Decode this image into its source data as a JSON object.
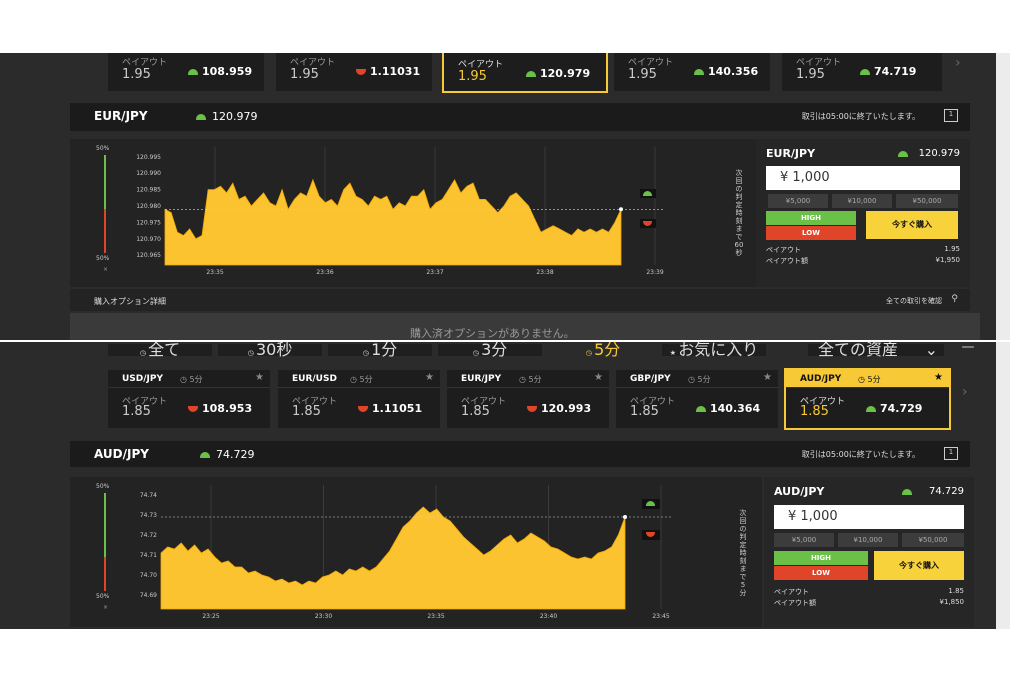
{
  "panel1": {
    "cards": [
      {
        "payout_label": "ペイアウト",
        "payout": "1.95",
        "rate": "108.959",
        "dir": "up"
      },
      {
        "payout_label": "ペイアウト",
        "payout": "1.95",
        "rate": "1.11031",
        "dir": "down"
      },
      {
        "payout_label": "ペイアウト",
        "payout": "1.95",
        "rate": "120.979",
        "dir": "up",
        "active": true
      },
      {
        "payout_label": "ペイアウト",
        "payout": "1.95",
        "rate": "140.356",
        "dir": "up"
      },
      {
        "payout_label": "ペイアウト",
        "payout": "1.95",
        "rate": "74.719",
        "dir": "up"
      }
    ],
    "header": {
      "pair": "EUR/JPY",
      "rate": "120.979",
      "notice": "取引は05:00に終了いたします。",
      "icon": "1"
    },
    "pct_top": "50%",
    "pct_bottom": "50%",
    "pct_x": "×",
    "countdown": [
      "次",
      "回",
      "の",
      "判",
      "定",
      "時",
      "刻",
      "ま",
      "で",
      "60",
      "秒"
    ],
    "side": {
      "pair": "EUR/JPY",
      "rate": "120.979",
      "amount": "¥ 1,000",
      "presets": [
        "¥5,000",
        "¥10,000",
        "¥50,000"
      ],
      "high": "HIGH",
      "low": "LOW",
      "buy": "今すぐ購入",
      "payout_label": "ペイアウト",
      "payout_value": "1.95",
      "payout_amount_label": "ペイアウト額",
      "payout_amount_value": "¥1,950"
    },
    "footer": {
      "left": "購入オプション詳細",
      "right": "全ての取引を確認"
    },
    "empty_message": "購入済オプションがありません。"
  },
  "panel2": {
    "tabs": [
      "全て",
      "30秒",
      "1分",
      "3分",
      "5分",
      "お気に入り"
    ],
    "asset_select": "全ての資産",
    "cards": [
      {
        "pair": "USD/JPY",
        "time": "5分",
        "payout_label": "ペイアウト",
        "payout": "1.85",
        "rate": "108.953",
        "dir": "down"
      },
      {
        "pair": "EUR/USD",
        "time": "5分",
        "payout_label": "ペイアウト",
        "payout": "1.85",
        "rate": "1.11051",
        "dir": "down"
      },
      {
        "pair": "EUR/JPY",
        "time": "5分",
        "payout_label": "ペイアウト",
        "payout": "1.85",
        "rate": "120.993",
        "dir": "down"
      },
      {
        "pair": "GBP/JPY",
        "time": "5分",
        "payout_label": "ペイアウト",
        "payout": "1.85",
        "rate": "140.364",
        "dir": "up"
      },
      {
        "pair": "AUD/JPY",
        "time": "5分",
        "payout_label": "ペイアウト",
        "payout": "1.85",
        "rate": "74.729",
        "dir": "up",
        "active": true
      }
    ],
    "header": {
      "pair": "AUD/JPY",
      "rate": "74.729",
      "notice": "取引は05:00に終了いたします。",
      "icon": "1"
    },
    "pct_top": "50%",
    "pct_bottom": "50%",
    "pct_x": "×",
    "countdown": [
      "次",
      "回",
      "の",
      "判",
      "定",
      "時",
      "刻",
      "ま",
      "で",
      "5",
      "分"
    ],
    "side": {
      "pair": "AUD/JPY",
      "rate": "74.729",
      "amount": "¥ 1,000",
      "presets": [
        "¥5,000",
        "¥10,000",
        "¥50,000"
      ],
      "high": "HIGH",
      "low": "LOW",
      "buy": "今すぐ購入",
      "payout_label": "ペイアウト",
      "payout_value": "1.85",
      "payout_amount_label": "ペイアウト額",
      "payout_amount_value": "¥1,850"
    }
  },
  "chart_data": [
    {
      "type": "area",
      "yticks": [
        "120.995",
        "120.990",
        "120.985",
        "120.980",
        "120.975",
        "120.970",
        "120.965"
      ],
      "ylim": [
        120.962,
        120.998
      ],
      "xticks": [
        "23:35",
        "23:36",
        "23:37",
        "23:38",
        "23:39"
      ],
      "current": 120.979,
      "values": [
        120.979,
        120.978,
        120.972,
        120.971,
        120.973,
        120.97,
        120.971,
        120.985,
        120.985,
        120.986,
        120.984,
        120.987,
        120.982,
        120.983,
        120.98,
        120.982,
        120.984,
        120.981,
        120.98,
        120.985,
        120.979,
        120.982,
        120.984,
        120.983,
        120.988,
        120.983,
        120.981,
        120.982,
        120.98,
        120.985,
        120.987,
        120.983,
        120.982,
        120.98,
        120.983,
        120.982,
        120.983,
        120.979,
        120.981,
        120.98,
        120.983,
        120.983,
        120.985,
        120.979,
        120.981,
        120.982,
        120.985,
        120.988,
        120.984,
        120.986,
        120.987,
        120.982,
        120.982,
        120.98,
        120.978,
        120.98,
        120.983,
        120.984,
        120.982,
        120.98,
        120.976,
        120.972,
        120.973,
        120.974,
        120.973,
        120.972,
        120.971,
        120.973,
        120.972,
        120.973,
        120.972,
        120.973,
        120.972,
        120.975,
        120.979
      ]
    },
    {
      "type": "area",
      "yticks": [
        "74.74",
        "74.73",
        "74.72",
        "74.71",
        "74.70",
        "74.69"
      ],
      "ylim": [
        74.683,
        74.745
      ],
      "xticks": [
        "23:25",
        "23:30",
        "23:35",
        "23:40",
        "23:45"
      ],
      "current": 74.729,
      "values": [
        74.711,
        74.714,
        74.713,
        74.716,
        74.712,
        74.715,
        74.711,
        74.713,
        74.709,
        74.706,
        74.707,
        74.704,
        74.704,
        74.701,
        74.702,
        74.7,
        74.699,
        74.697,
        74.698,
        74.696,
        74.697,
        74.695,
        74.697,
        74.696,
        74.699,
        74.7,
        74.702,
        74.7,
        74.703,
        74.702,
        74.704,
        74.702,
        74.704,
        74.708,
        74.712,
        74.718,
        74.724,
        74.727,
        74.731,
        74.734,
        74.731,
        74.733,
        74.729,
        74.727,
        74.723,
        74.719,
        74.716,
        74.713,
        74.71,
        74.712,
        74.715,
        74.718,
        74.72,
        74.716,
        74.718,
        74.721,
        74.719,
        74.717,
        74.714,
        74.713,
        74.711,
        74.709,
        74.708,
        74.709,
        74.708,
        74.711,
        74.712,
        74.714,
        74.72,
        74.729
      ]
    }
  ],
  "colors": {
    "accent": "#f7c936",
    "area": "#fbc330",
    "up": "#6bc048",
    "down": "#e0452a",
    "panel": "#2b2b2b"
  }
}
